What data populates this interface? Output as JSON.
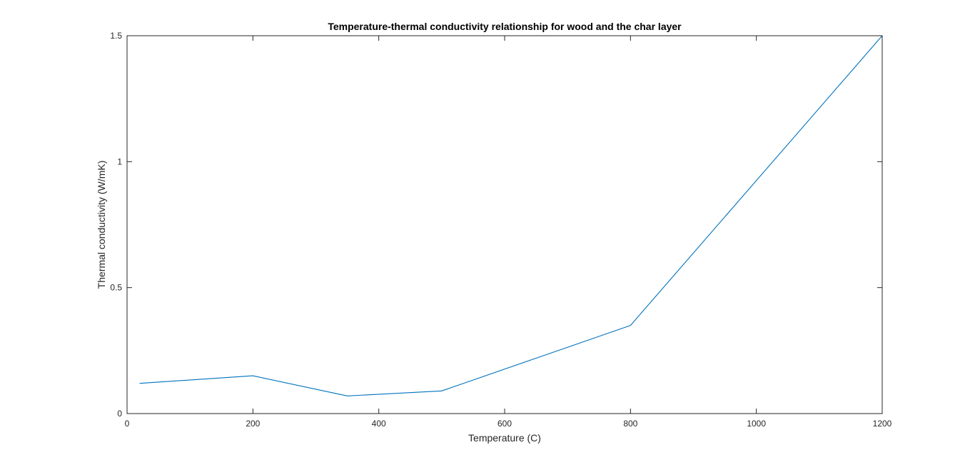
{
  "chart_data": {
    "type": "line",
    "title": "Temperature-thermal conductivity relationship for wood and the char layer",
    "xlabel": "Temperature (C)",
    "ylabel": "Thermal conductivity (W/mK)",
    "xlim": [
      0,
      1200
    ],
    "ylim": [
      0,
      1.5
    ],
    "xticks": [
      0,
      200,
      400,
      600,
      800,
      1000,
      1200
    ],
    "xtick_labels": [
      "0",
      "200",
      "400",
      "600",
      "800",
      "1000",
      "1200"
    ],
    "yticks": [
      0,
      0.5,
      1,
      1.5
    ],
    "ytick_labels": [
      "0",
      "0.5",
      "1",
      "1.5"
    ],
    "grid": false,
    "series": [
      {
        "color": "#0072BD",
        "x": [
          20,
          200,
          350,
          500,
          800,
          1200
        ],
        "y": [
          0.12,
          0.15,
          0.07,
          0.09,
          0.35,
          1.5
        ]
      }
    ]
  }
}
